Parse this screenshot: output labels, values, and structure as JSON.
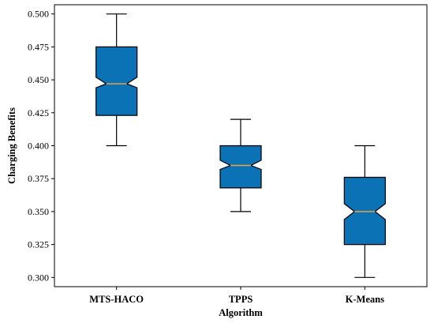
{
  "chart_data": {
    "type": "box",
    "title": "",
    "xlabel": "Algorithm",
    "ylabel": "Charging Benefits",
    "ylim": [
      0.293,
      0.507
    ],
    "yticks": [
      "0.300",
      "0.325",
      "0.350",
      "0.375",
      "0.400",
      "0.425",
      "0.450",
      "0.475",
      "0.500"
    ],
    "notched": true,
    "grid": false,
    "colors": {
      "box_fill": "#0b72b5",
      "median": "#e8a33d",
      "edge": "#000000"
    },
    "categories": [
      "MTS-HACO",
      "TPPS",
      "K-Means"
    ],
    "boxes": [
      {
        "name": "MTS-HACO",
        "whisker_low": 0.4,
        "q1": 0.423,
        "median": 0.447,
        "q3": 0.475,
        "whisker_high": 0.5,
        "notch_low": 0.444,
        "notch_high": 0.452
      },
      {
        "name": "TPPS",
        "whisker_low": 0.35,
        "q1": 0.368,
        "median": 0.385,
        "q3": 0.4,
        "whisker_high": 0.42,
        "notch_low": 0.382,
        "notch_high": 0.389
      },
      {
        "name": "K-Means",
        "whisker_low": 0.3,
        "q1": 0.325,
        "median": 0.35,
        "q3": 0.376,
        "whisker_high": 0.4,
        "notch_low": 0.344,
        "notch_high": 0.356
      }
    ]
  }
}
